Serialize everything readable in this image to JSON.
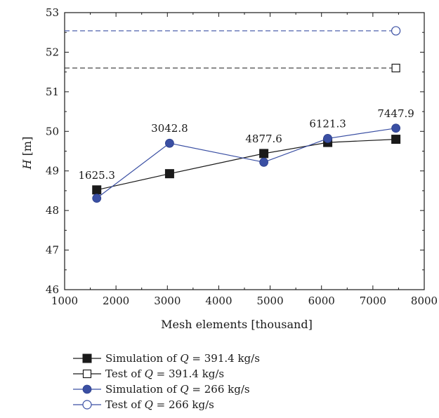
{
  "chart_data": {
    "type": "line",
    "xlabel": "Mesh elements [thousand]",
    "ylabel_var": "H",
    "ylabel_unit": " [m]",
    "xlim": [
      1000,
      8000
    ],
    "ylim": [
      46,
      53
    ],
    "xticks": [
      1000,
      2000,
      3000,
      4000,
      5000,
      6000,
      7000,
      8000
    ],
    "yticks": [
      46,
      47,
      48,
      49,
      50,
      51,
      52,
      53
    ],
    "grid": false,
    "legend_position": "bottom",
    "point_labels": [
      {
        "x": 1625.3,
        "text": "1625.3"
      },
      {
        "x": 3042.8,
        "text": "3042.8"
      },
      {
        "x": 4877.6,
        "text": "4877.6"
      },
      {
        "x": 6121.3,
        "text": "6121.3"
      },
      {
        "x": 7447.9,
        "text": "7447.9"
      }
    ],
    "series": [
      {
        "name_prefix": "Simulation of ",
        "name_var": "Q",
        "name_suffix": " = 391.4 kg/s",
        "style": "line-marker",
        "marker": "square-filled",
        "color": "#1a1a1a",
        "x": [
          1625.3,
          3042.8,
          4877.6,
          6121.3,
          7447.9
        ],
        "y": [
          48.52,
          48.93,
          49.44,
          49.72,
          49.8
        ]
      },
      {
        "name_prefix": "Test of ",
        "name_var": "Q",
        "name_suffix": " = 391.4 kg/s",
        "style": "dashed-reference",
        "marker": "square-open",
        "color": "#1a1a1a",
        "x": [
          7447.9
        ],
        "y": [
          51.6
        ]
      },
      {
        "name_prefix": "Simulation of ",
        "name_var": "Q",
        "name_suffix": " = 266 kg/s",
        "style": "line-marker",
        "marker": "circle-filled",
        "color": "#3a4fa3",
        "x": [
          1625.3,
          3042.8,
          4877.6,
          6121.3,
          7447.9
        ],
        "y": [
          48.31,
          49.7,
          49.22,
          49.82,
          50.08
        ]
      },
      {
        "name_prefix": "Test of ",
        "name_var": "Q",
        "name_suffix": " = 266 kg/s",
        "style": "dashed-reference",
        "marker": "circle-open",
        "color": "#3a4fa3",
        "x": [
          7447.9
        ],
        "y": [
          52.54
        ]
      }
    ]
  }
}
